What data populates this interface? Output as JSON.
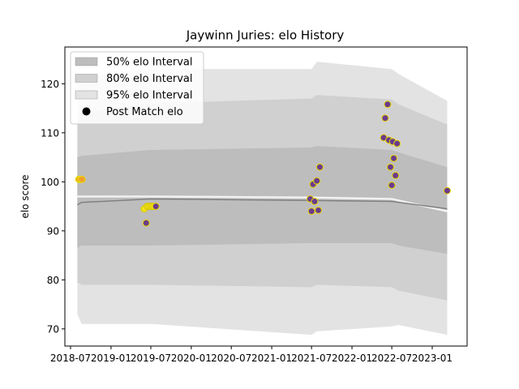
{
  "chart_data": {
    "type": "line",
    "title": "Jaywinn Juries: elo History",
    "xlabel": "",
    "ylabel": "elo score",
    "x_ticks": [
      "2018-07",
      "2019-01",
      "2019-07",
      "2020-01",
      "2020-07",
      "2021-01",
      "2021-07",
      "2022-01",
      "2022-07",
      "2023-01"
    ],
    "y_ticks": [
      70,
      80,
      90,
      100,
      110,
      120
    ],
    "ylim": [
      66.5,
      127.5
    ],
    "legend": {
      "placement": "top-left",
      "entries": [
        "50% elo Interval",
        "80% elo Interval",
        "95% elo Interval",
        "Post Match elo"
      ]
    },
    "band_x": [
      "2018-08-01",
      "2018-08-20",
      "2019-07-01",
      "2021-07-01",
      "2021-07-25",
      "2022-07-01",
      "2022-08-01",
      "2023-03-10"
    ],
    "bands": [
      {
        "name": "95% elo Interval",
        "color": "#e3e3e3",
        "upper": [
          119,
          121.5,
          123,
          123,
          124.5,
          123,
          122,
          116.5
        ],
        "lower": [
          73,
          71,
          71,
          68.8,
          69.5,
          70.5,
          70.8,
          68.8
        ]
      },
      {
        "name": "80% elo Interval",
        "color": "#d0d0d0",
        "upper": [
          112,
          114,
          116,
          117,
          117.7,
          116.8,
          115.8,
          111.7
        ],
        "lower": [
          79.5,
          79,
          79,
          78.5,
          79,
          78.5,
          77.8,
          75.8
        ]
      },
      {
        "name": "50% elo Interval",
        "color": "#bdbdbd",
        "upper": [
          105,
          105.3,
          106.5,
          107,
          107.3,
          106.5,
          106,
          103
        ],
        "lower": [
          86.5,
          87,
          87,
          87.5,
          87.5,
          87.5,
          87,
          85.3
        ]
      }
    ],
    "mean_line": {
      "color": "#808080",
      "x": [
        "2018-08-01",
        "2018-08-20",
        "2019-07-01",
        "2021-07-01",
        "2022-07-01",
        "2023-03-10"
      ],
      "y": [
        95.3,
        95.8,
        96.5,
        96.2,
        96,
        94.5
      ]
    },
    "white_line": {
      "color": "#f2f2f2",
      "x": [
        "2018-08-01",
        "2019-07-01",
        "2021-07-01",
        "2022-07-01",
        "2023-03-10"
      ],
      "y": [
        97,
        97,
        96.8,
        96.5,
        94
      ]
    },
    "series": [
      {
        "name": "Post Match elo",
        "points": [
          {
            "x": "2018-08-08",
            "y": 100.5,
            "color": "#f0a030"
          },
          {
            "x": "2018-08-15",
            "y": 100.5,
            "color": "#f0a030"
          },
          {
            "x": "2018-08-22",
            "y": 100.5,
            "color": "#f0a030"
          },
          {
            "x": "2019-06-01",
            "y": 94.5,
            "color": "#f0e020"
          },
          {
            "x": "2019-06-10",
            "y": 91.6,
            "color": "#6a3c8c"
          },
          {
            "x": "2019-06-15",
            "y": 95,
            "color": "#f0e020"
          },
          {
            "x": "2019-06-22",
            "y": 95,
            "color": "#f0e020"
          },
          {
            "x": "2019-07-01",
            "y": 95,
            "color": "#f0e020"
          },
          {
            "x": "2019-07-08",
            "y": 95,
            "color": "#f0e020"
          },
          {
            "x": "2019-07-16",
            "y": 95,
            "color": "#f0e020"
          },
          {
            "x": "2019-07-24",
            "y": 95,
            "color": "#6a3c8c"
          },
          {
            "x": "2021-06-25",
            "y": 96.5,
            "color": "#6a3c8c"
          },
          {
            "x": "2021-07-01",
            "y": 94,
            "color": "#6a3c8c"
          },
          {
            "x": "2021-07-08",
            "y": 99.5,
            "color": "#6a3c8c"
          },
          {
            "x": "2021-07-15",
            "y": 96,
            "color": "#6a3c8c"
          },
          {
            "x": "2021-07-25",
            "y": 100.2,
            "color": "#6a3c8c"
          },
          {
            "x": "2021-08-01",
            "y": 94.2,
            "color": "#6a3c8c"
          },
          {
            "x": "2021-08-08",
            "y": 103,
            "color": "#6a3c8c"
          },
          {
            "x": "2022-05-25",
            "y": 109,
            "color": "#6a3c8c"
          },
          {
            "x": "2022-06-01",
            "y": 113,
            "color": "#6a3c8c"
          },
          {
            "x": "2022-06-12",
            "y": 115.8,
            "color": "#6a3c8c"
          },
          {
            "x": "2022-06-18",
            "y": 108.5,
            "color": "#6a3c8c"
          },
          {
            "x": "2022-06-25",
            "y": 103,
            "color": "#6a3c8c"
          },
          {
            "x": "2022-07-01",
            "y": 99.3,
            "color": "#6a3c8c"
          },
          {
            "x": "2022-07-05",
            "y": 108.2,
            "color": "#6a3c8c"
          },
          {
            "x": "2022-07-10",
            "y": 104.8,
            "color": "#6a3c8c"
          },
          {
            "x": "2022-07-18",
            "y": 101.3,
            "color": "#6a3c8c"
          },
          {
            "x": "2022-07-25",
            "y": 107.8,
            "color": "#6a3c8c"
          },
          {
            "x": "2023-03-10",
            "y": 98.2,
            "color": "#6a3c8c"
          }
        ]
      }
    ],
    "grid": false
  }
}
